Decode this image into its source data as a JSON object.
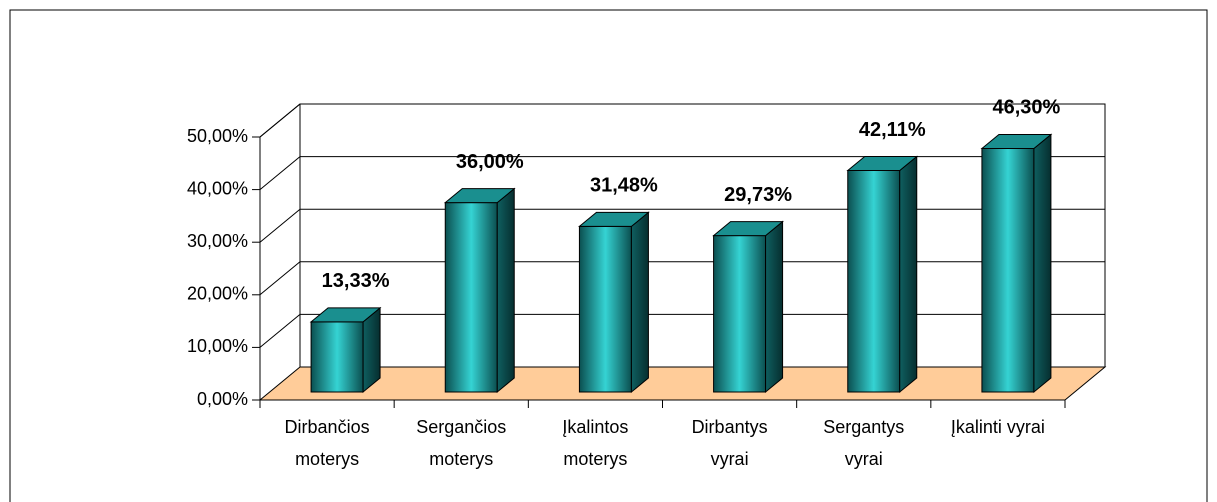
{
  "chart_data": {
    "type": "bar3d",
    "categories": [
      "Dirbančios\nmoterys",
      "Sergančios\nmoterys",
      "Įkalintos\nmoterys",
      "Dirbantys\nvyrai",
      "Sergantys\nvyrai",
      "Įkalinti vyrai"
    ],
    "values": [
      13.33,
      36.0,
      31.48,
      29.73,
      42.11,
      46.3
    ],
    "value_labels": [
      "13,33%",
      "36,00%",
      "31,48%",
      "29,73%",
      "42,11%",
      "46,30%"
    ],
    "color": "#1fa8a8",
    "floor_color": "#ffcc99",
    "ylim": [
      0,
      50
    ],
    "yticks": [
      {
        "value": 0,
        "label": "0,00%"
      },
      {
        "value": 10,
        "label": "10,00%"
      },
      {
        "value": 20,
        "label": "20,00%"
      },
      {
        "value": 30,
        "label": "30,00%"
      },
      {
        "value": 40,
        "label": "40,00%"
      },
      {
        "value": 50,
        "label": "50,00%"
      }
    ],
    "grid": true
  }
}
